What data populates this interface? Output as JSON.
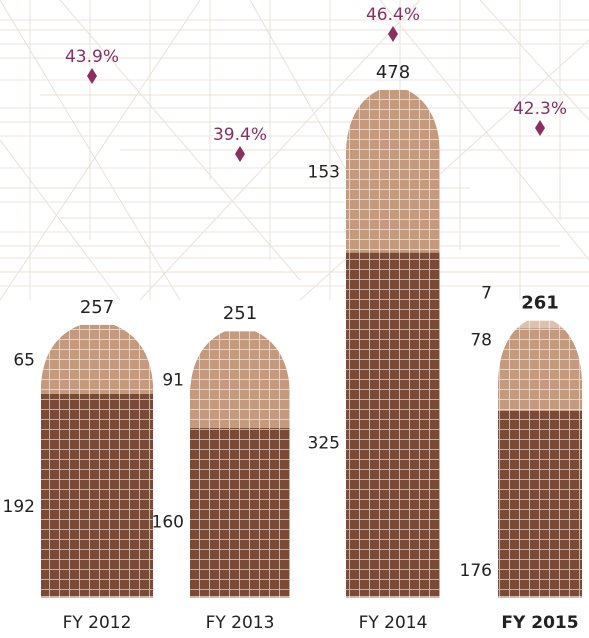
{
  "chart_data": {
    "type": "bar",
    "stacked": true,
    "categories": [
      "FY 2012",
      "FY 2013",
      "FY 2014",
      "FY 2015"
    ],
    "highlight_category": "FY 2015",
    "series": [
      {
        "values": [
          192,
          160,
          325,
          176
        ],
        "color": "#7b4a35"
      },
      {
        "values": [
          65,
          91,
          153,
          78
        ],
        "color": "#c59a7c"
      },
      {
        "values": [
          0,
          0,
          0,
          7
        ],
        "color": "#dcc1ae"
      }
    ],
    "totals": [
      257,
      251,
      478,
      261
    ],
    "percentages": [
      "43.9%",
      "39.4%",
      "46.4%",
      "42.3%"
    ],
    "percentage_color": "#8b2f61",
    "grid": false,
    "legend": "none",
    "ylim": [
      0,
      478
    ]
  }
}
